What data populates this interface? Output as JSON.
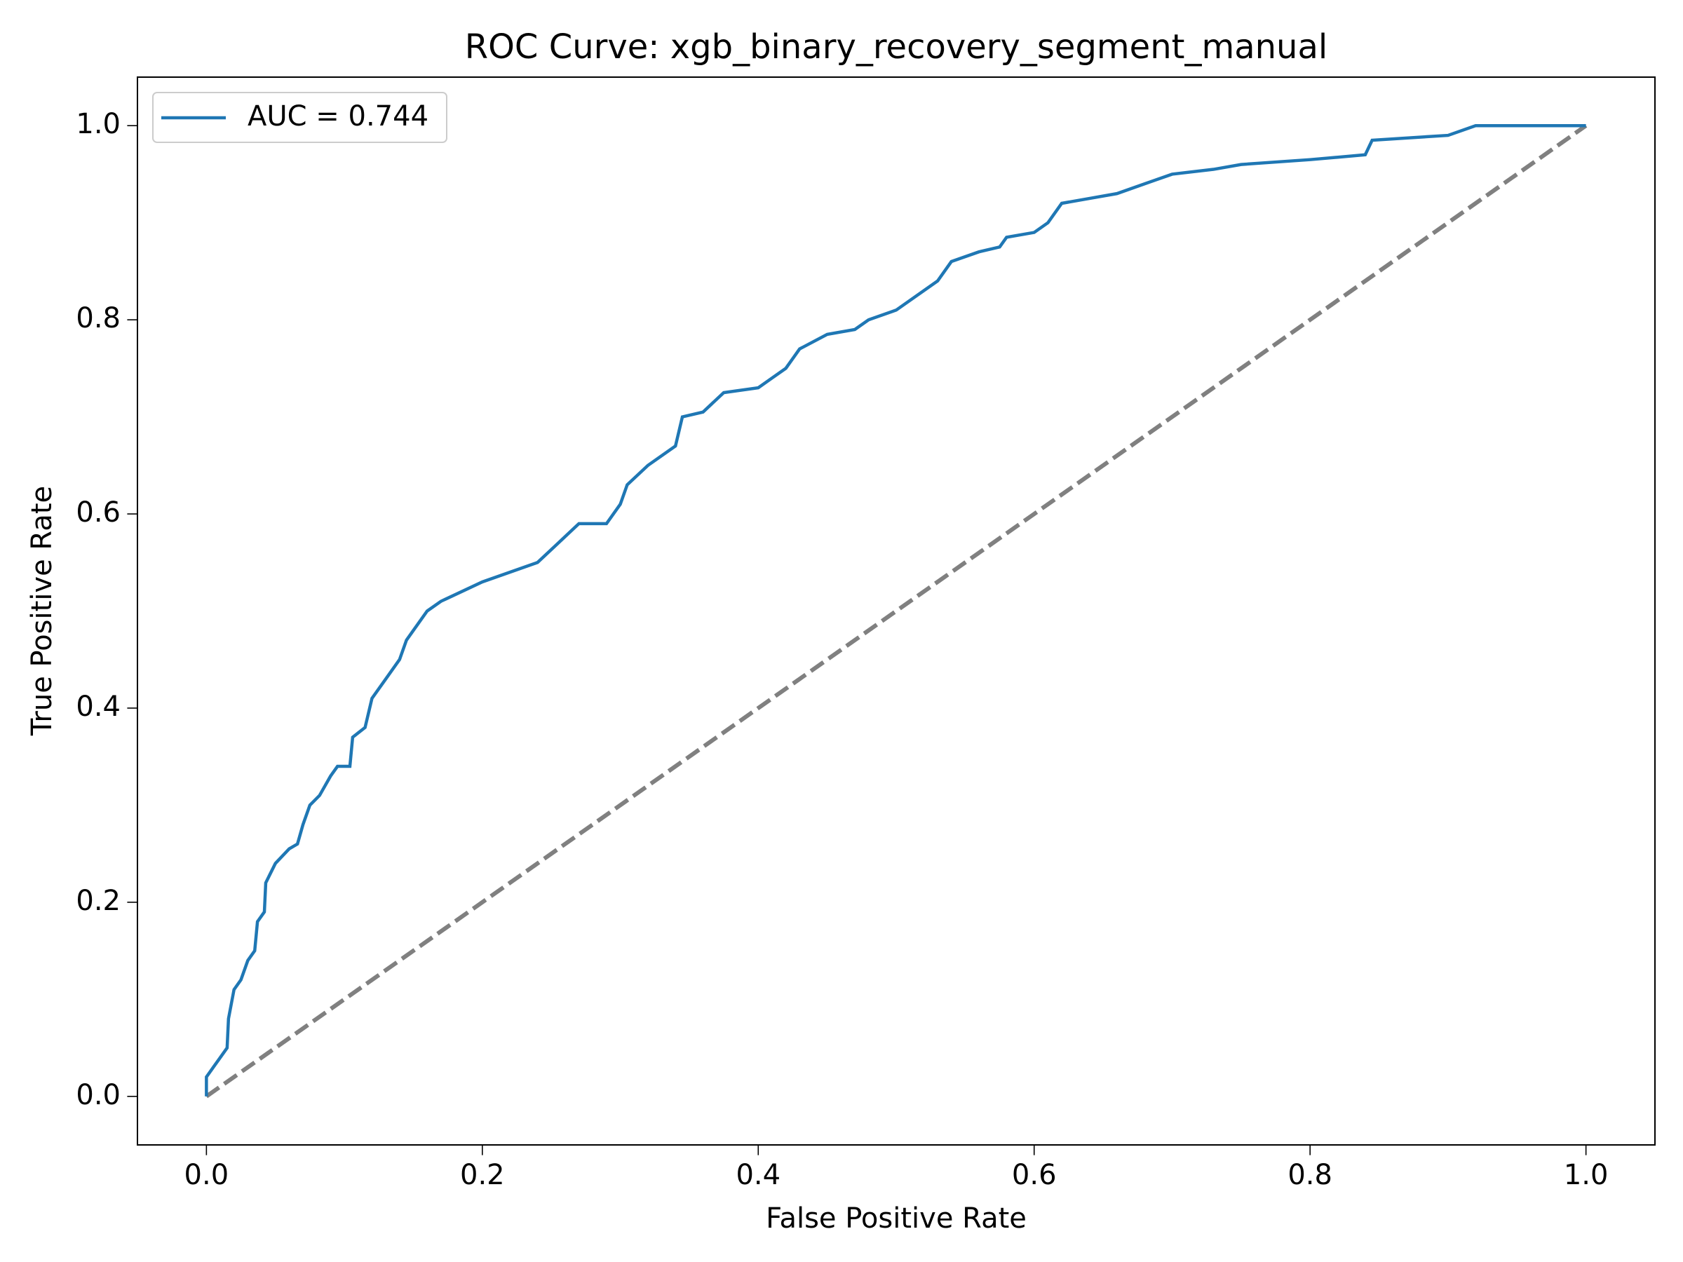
{
  "chart_data": {
    "type": "line",
    "title": "ROC Curve: xgb_binary_recovery_segment_manual",
    "x_label": "False Positive Rate",
    "y_label": "True Positive Rate",
    "xlim": [
      -0.05,
      1.05
    ],
    "ylim": [
      -0.05,
      1.05
    ],
    "xticks": [
      {
        "value": 0,
        "label": "0.0"
      },
      0.2,
      0.4,
      0.6,
      0.8,
      {
        "value": 1,
        "label": "1.0"
      }
    ],
    "yticks": [
      {
        "value": 0,
        "label": "0.0"
      },
      0.2,
      0.4,
      0.6,
      0.8,
      {
        "value": 1,
        "label": "1.0"
      }
    ],
    "grid": false,
    "legend_position": "upper-left",
    "series": [
      {
        "name": "AUC = 0.744",
        "color": "#1f77b4",
        "x": [
          0,
          0,
          0.005,
          0.01,
          0.015,
          0.016,
          0.02,
          0.025,
          0.03,
          0.035,
          0.037,
          0.042,
          0.043,
          0.05,
          0.06,
          0.066,
          0.07,
          0.075,
          0.082,
          0.09,
          0.095,
          0.104,
          0.106,
          0.115,
          0.12,
          0.13,
          0.14,
          0.145,
          0.15,
          0.16,
          0.17,
          0.185,
          0.2,
          0.22,
          0.24,
          0.255,
          0.27,
          0.29,
          0.3,
          0.305,
          0.32,
          0.34,
          0.345,
          0.36,
          0.375,
          0.4,
          0.41,
          0.42,
          0.43,
          0.45,
          0.47,
          0.48,
          0.5,
          0.51,
          0.53,
          0.54,
          0.56,
          0.575,
          0.58,
          0.6,
          0.61,
          0.62,
          0.64,
          0.66,
          0.68,
          0.7,
          0.73,
          0.75,
          0.8,
          0.84,
          0.845,
          0.9,
          0.92,
          1
        ],
        "values": [
          0,
          0.02,
          0.03,
          0.04,
          0.05,
          0.08,
          0.11,
          0.12,
          0.14,
          0.15,
          0.18,
          0.19,
          0.22,
          0.24,
          0.255,
          0.26,
          0.28,
          0.3,
          0.31,
          0.33,
          0.34,
          0.34,
          0.37,
          0.38,
          0.41,
          0.43,
          0.45,
          0.47,
          0.48,
          0.5,
          0.51,
          0.52,
          0.53,
          0.54,
          0.55,
          0.57,
          0.59,
          0.59,
          0.61,
          0.63,
          0.65,
          0.67,
          0.7,
          0.705,
          0.725,
          0.73,
          0.74,
          0.75,
          0.77,
          0.785,
          0.79,
          0.8,
          0.81,
          0.82,
          0.84,
          0.86,
          0.87,
          0.875,
          0.885,
          0.89,
          0.9,
          0.92,
          0.925,
          0.93,
          0.94,
          0.95,
          0.955,
          0.96,
          0.965,
          0.97,
          0.985,
          0.99,
          1,
          1
        ]
      }
    ],
    "reference_line": {
      "x": [
        0,
        1
      ],
      "values": [
        0,
        1
      ],
      "color": "#808080",
      "dashed": true
    }
  }
}
